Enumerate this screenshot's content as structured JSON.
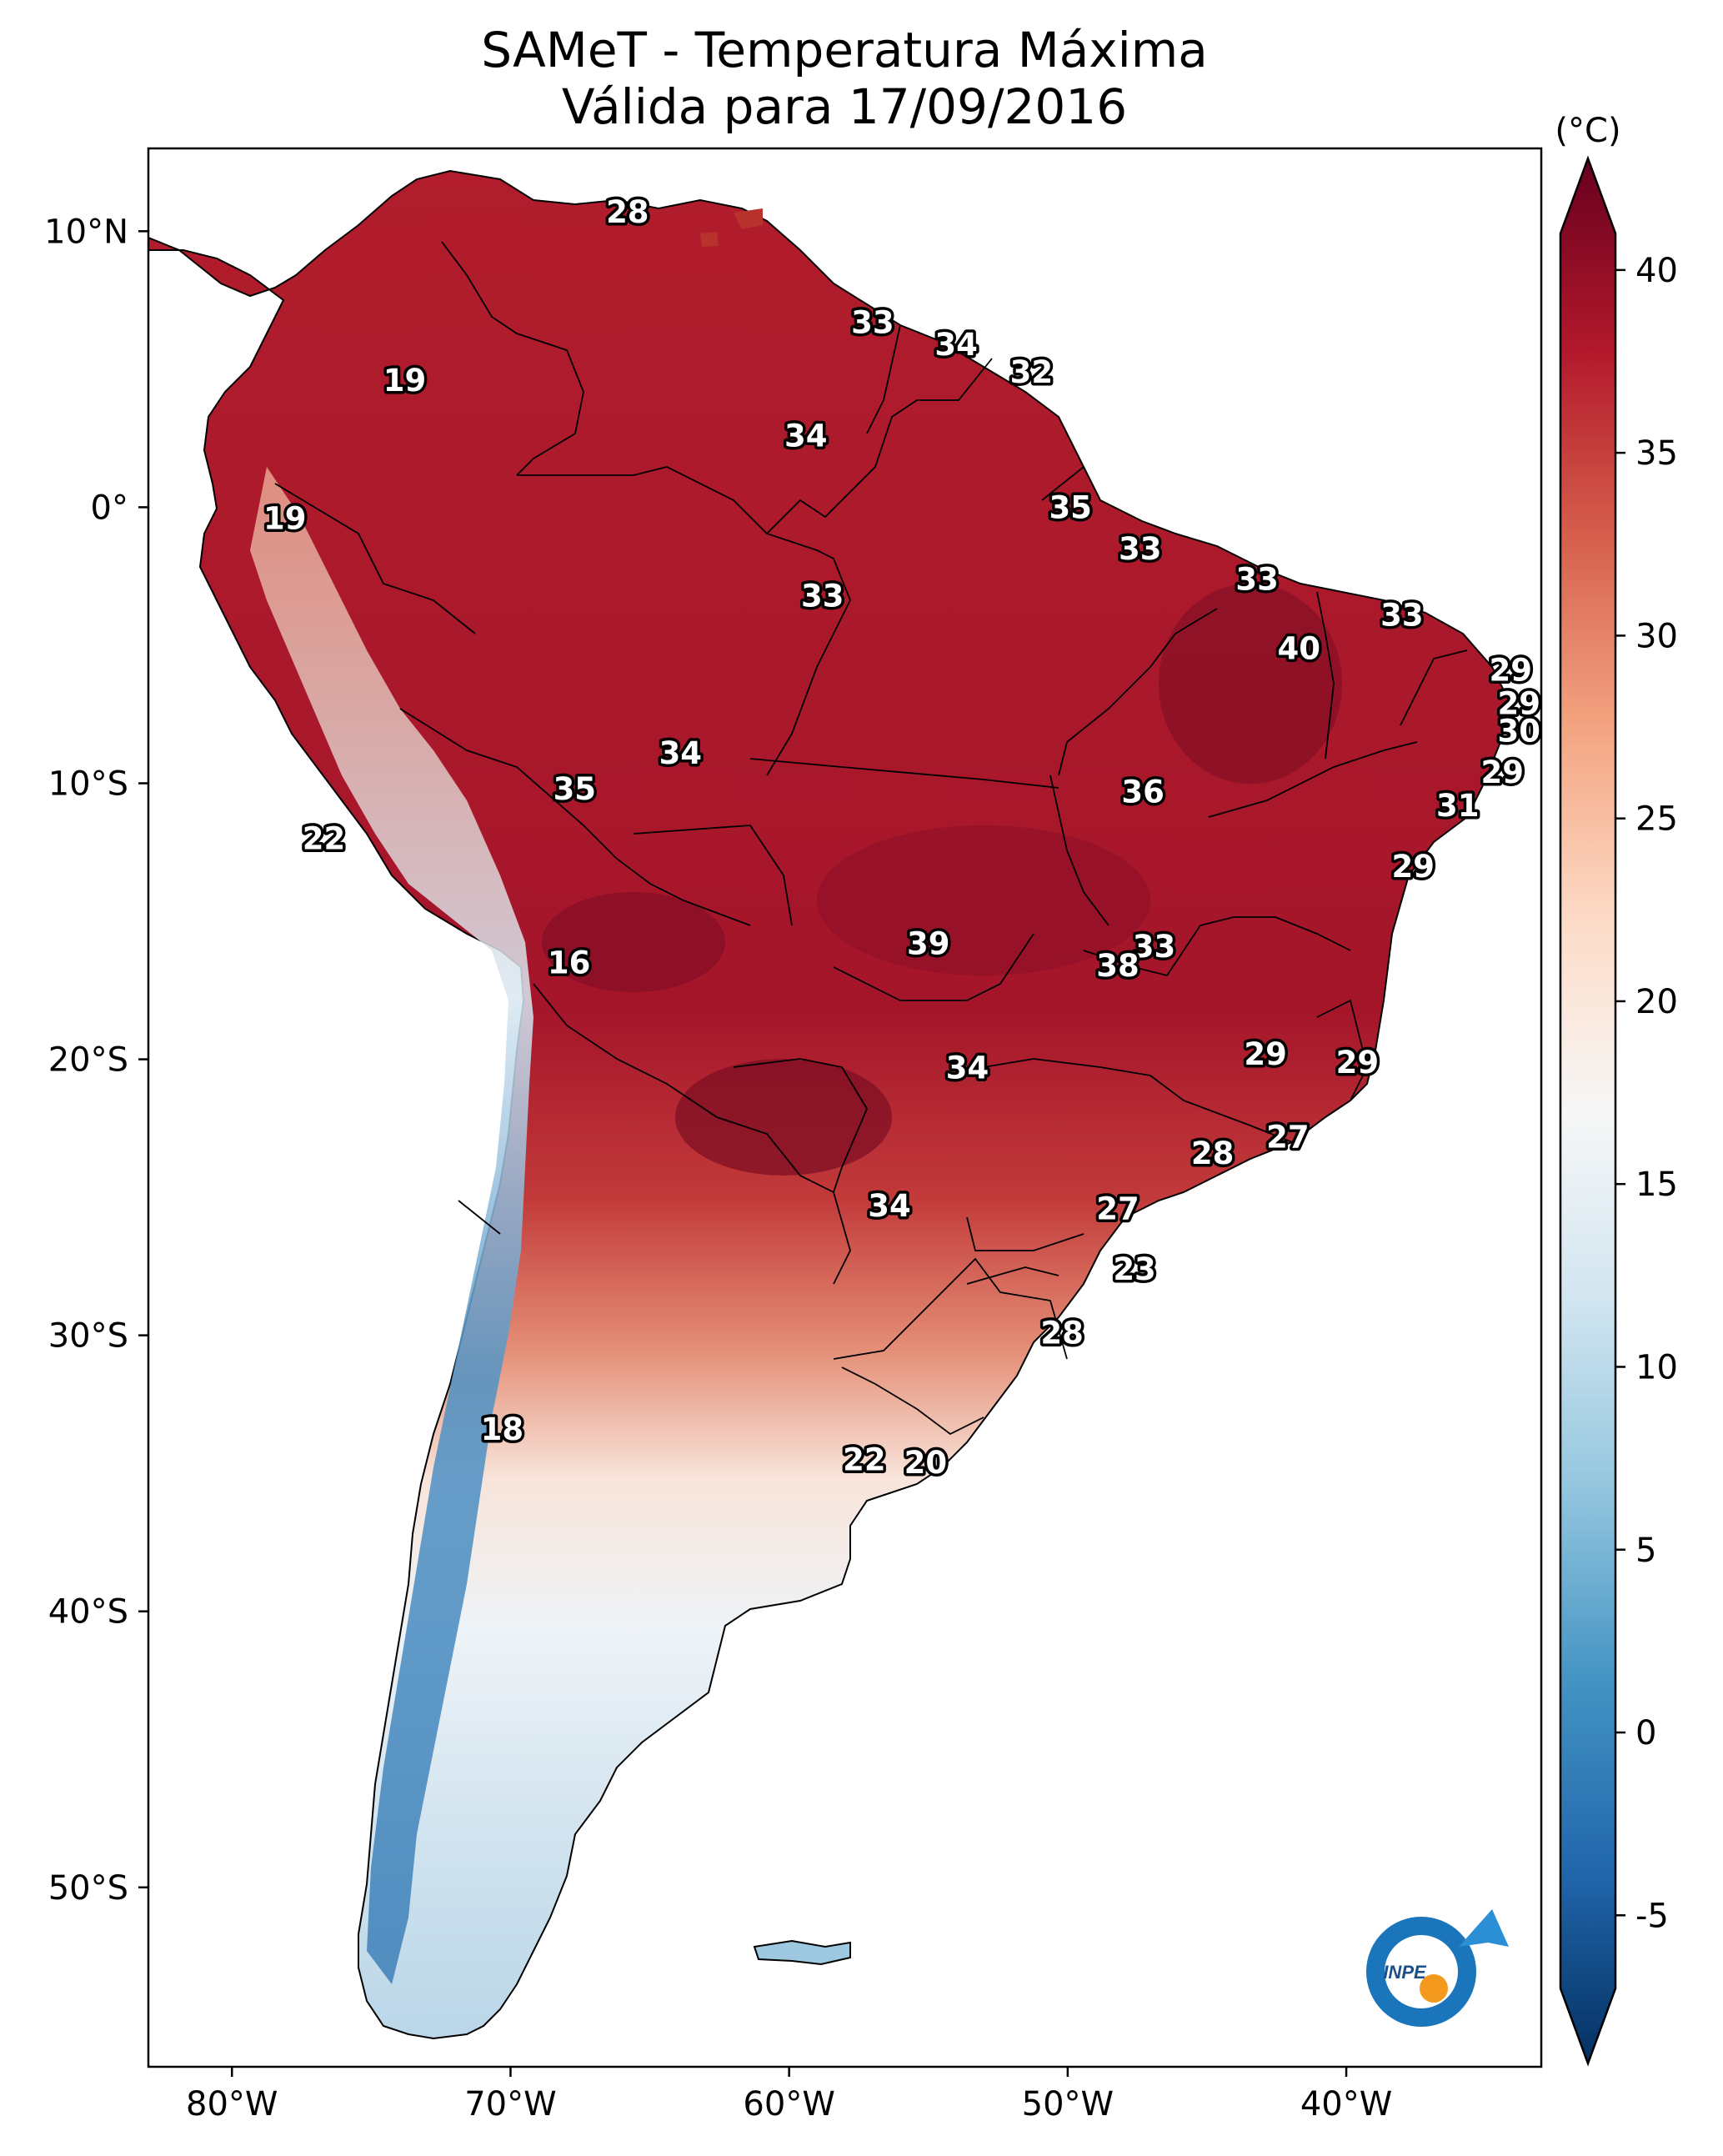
{
  "title": {
    "line1": "SAMeT - Temperatura Máxima",
    "line2": "Válida para 17/09/2016"
  },
  "colorbar": {
    "unit": "(°C)",
    "min": -7,
    "max": 41,
    "tick_values": [
      -5,
      0,
      5,
      10,
      15,
      20,
      25,
      30,
      35,
      40
    ],
    "tick_labels": [
      "-5",
      "0",
      "5",
      "10",
      "15",
      "20",
      "25",
      "30",
      "35",
      "40"
    ],
    "colormap": "RdBu_r",
    "colors": [
      "#053061",
      "#2166ac",
      "#4393c3",
      "#92c5de",
      "#d1e5f0",
      "#f7f7f7",
      "#fddbc7",
      "#f4a582",
      "#d6604d",
      "#b2182b",
      "#67001f"
    ]
  },
  "map": {
    "extent_lon": [
      -83,
      -33
    ],
    "extent_lat": [
      -56.5,
      13
    ],
    "lon_ticks": [
      {
        "value": -80,
        "label": "80°W"
      },
      {
        "value": -70,
        "label": "70°W"
      },
      {
        "value": -60,
        "label": "60°W"
      },
      {
        "value": -50,
        "label": "50°W"
      },
      {
        "value": -40,
        "label": "40°W"
      }
    ],
    "lat_ticks": [
      {
        "value": 10,
        "label": "10°N"
      },
      {
        "value": 0,
        "label": "0°"
      },
      {
        "value": -10,
        "label": "10°S"
      },
      {
        "value": -20,
        "label": "20°S"
      },
      {
        "value": -30,
        "label": "30°S"
      },
      {
        "value": -40,
        "label": "40°S"
      },
      {
        "value": -50,
        "label": "50°S"
      }
    ],
    "station_labels": [
      {
        "text": "28",
        "lon": -65.8,
        "lat": 10.7
      },
      {
        "text": "33",
        "lon": -57.0,
        "lat": 6.7
      },
      {
        "text": "34",
        "lon": -54.0,
        "lat": 5.9
      },
      {
        "text": "32",
        "lon": -51.3,
        "lat": 4.9
      },
      {
        "text": "19",
        "lon": -73.8,
        "lat": 4.6
      },
      {
        "text": "34",
        "lon": -59.4,
        "lat": 2.6
      },
      {
        "text": "35",
        "lon": -49.9,
        "lat": 0.0
      },
      {
        "text": "19",
        "lon": -78.1,
        "lat": -0.4
      },
      {
        "text": "33",
        "lon": -47.4,
        "lat": -1.5
      },
      {
        "text": "33",
        "lon": -58.8,
        "lat": -3.2
      },
      {
        "text": "33",
        "lon": -43.2,
        "lat": -2.6
      },
      {
        "text": "33",
        "lon": -38.0,
        "lat": -3.9
      },
      {
        "text": "40",
        "lon": -41.7,
        "lat": -5.1
      },
      {
        "text": "29",
        "lon": -34.1,
        "lat": -5.9
      },
      {
        "text": "29",
        "lon": -33.8,
        "lat": -7.1
      },
      {
        "text": "30",
        "lon": -33.8,
        "lat": -8.1
      },
      {
        "text": "34",
        "lon": -63.9,
        "lat": -8.9
      },
      {
        "text": "35",
        "lon": -67.7,
        "lat": -10.2
      },
      {
        "text": "36",
        "lon": -47.3,
        "lat": -10.3
      },
      {
        "text": "29",
        "lon": -34.4,
        "lat": -9.6
      },
      {
        "text": "31",
        "lon": -36.0,
        "lat": -10.8
      },
      {
        "text": "22",
        "lon": -76.7,
        "lat": -12.0
      },
      {
        "text": "29",
        "lon": -37.6,
        "lat": -13.0
      },
      {
        "text": "39",
        "lon": -55.0,
        "lat": -15.8
      },
      {
        "text": "33",
        "lon": -46.9,
        "lat": -15.9
      },
      {
        "text": "38",
        "lon": -48.2,
        "lat": -16.6
      },
      {
        "text": "16",
        "lon": -67.9,
        "lat": -16.5
      },
      {
        "text": "34",
        "lon": -53.6,
        "lat": -20.3
      },
      {
        "text": "29",
        "lon": -42.9,
        "lat": -19.8
      },
      {
        "text": "29",
        "lon": -39.6,
        "lat": -20.1
      },
      {
        "text": "27",
        "lon": -42.1,
        "lat": -22.8
      },
      {
        "text": "28",
        "lon": -44.8,
        "lat": -23.4
      },
      {
        "text": "34",
        "lon": -56.4,
        "lat": -25.3
      },
      {
        "text": "27",
        "lon": -48.2,
        "lat": -25.4
      },
      {
        "text": "23",
        "lon": -47.6,
        "lat": -27.6
      },
      {
        "text": "28",
        "lon": -50.2,
        "lat": -29.9
      },
      {
        "text": "18",
        "lon": -70.3,
        "lat": -33.4
      },
      {
        "text": "22",
        "lon": -57.3,
        "lat": -34.5
      },
      {
        "text": "20",
        "lon": -55.1,
        "lat": -34.6
      }
    ]
  },
  "logo": {
    "text": "INPE",
    "colors": {
      "ring": "#1b75bb",
      "dot": "#f39a1e",
      "arrow": "#2b8fd6"
    }
  }
}
